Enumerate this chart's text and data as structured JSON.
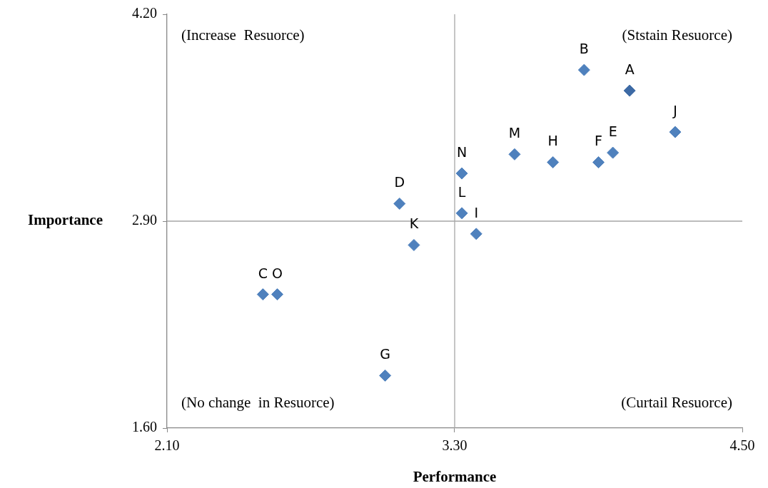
{
  "chart_data": {
    "type": "scatter",
    "xlabel": "Performance",
    "ylabel": "Importance",
    "xlim": [
      2.1,
      4.5
    ],
    "xticks": [
      {
        "value": 2.1,
        "label": "2.10"
      },
      {
        "value": 3.3,
        "label": "3.30"
      },
      {
        "value": 4.5,
        "label": "4.50"
      }
    ],
    "ylim": [
      1.6,
      4.2
    ],
    "yticks": [
      {
        "value": 1.6,
        "label": "1.60"
      },
      {
        "value": 2.9,
        "label": "2.90"
      },
      {
        "value": 4.2,
        "label": "4.20"
      }
    ],
    "grid": false,
    "legend": false,
    "marker": "diamond",
    "ref_lines": [
      {
        "axis": "x",
        "value": 3.3,
        "color": "#a6a6a6"
      },
      {
        "axis": "y",
        "value": 2.9,
        "color": "#a6a6a6"
      }
    ],
    "annotations": [
      "(Increase  Resuorce)",
      "(Ststain Resuorce)",
      "(No change  in Resuorce)",
      "(Curtail Resuorce)"
    ],
    "series": [
      {
        "name": "A",
        "color": "#3d6aa5",
        "x": [
          4.03
        ],
        "values": [
          3.72
        ]
      },
      {
        "name": "B",
        "color": "#4f81bd",
        "x": [
          3.84
        ],
        "values": [
          3.85
        ]
      },
      {
        "name": "J",
        "color": "#4f81bd",
        "x": [
          4.22
        ],
        "values": [
          3.46
        ]
      },
      {
        "name": "M",
        "color": "#4f81bd",
        "x": [
          3.55
        ],
        "values": [
          3.32
        ]
      },
      {
        "name": "H",
        "color": "#4f81bd",
        "x": [
          3.71
        ],
        "values": [
          3.27
        ]
      },
      {
        "name": "E",
        "color": "#4f81bd",
        "x": [
          3.96
        ],
        "values": [
          3.33
        ]
      },
      {
        "name": "F",
        "color": "#4f81bd",
        "x": [
          3.9
        ],
        "values": [
          3.27
        ]
      },
      {
        "name": "N",
        "color": "#4f81bd",
        "x": [
          3.33
        ],
        "values": [
          3.2
        ]
      },
      {
        "name": "L",
        "color": "#4f81bd",
        "x": [
          3.33
        ],
        "values": [
          2.95
        ]
      },
      {
        "name": "I",
        "color": "#4f81bd",
        "x": [
          3.39
        ],
        "values": [
          2.82
        ]
      },
      {
        "name": "D",
        "color": "#4f81bd",
        "x": [
          3.07
        ],
        "values": [
          3.01
        ]
      },
      {
        "name": "K",
        "color": "#4f81bd",
        "x": [
          3.13
        ],
        "values": [
          2.75
        ]
      },
      {
        "name": "C",
        "color": "#4f81bd",
        "x": [
          2.5
        ],
        "values": [
          2.44
        ]
      },
      {
        "name": "O",
        "color": "#4f81bd",
        "x": [
          2.56
        ],
        "values": [
          2.44
        ]
      },
      {
        "name": "G",
        "color": "#4f81bd",
        "x": [
          3.01
        ],
        "values": [
          1.93
        ]
      }
    ]
  }
}
